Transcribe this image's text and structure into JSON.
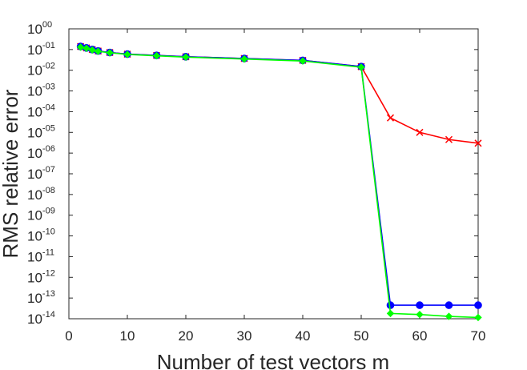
{
  "chart_data": {
    "type": "line",
    "xlabel": "Number of test vectors m",
    "ylabel": "RMS relative error",
    "xlim": [
      0,
      70
    ],
    "ylim_exponent": [
      -14,
      0
    ],
    "yscale": "log",
    "grid": false,
    "xticks": [
      "0",
      "10",
      "20",
      "30",
      "40",
      "50",
      "60",
      "70"
    ],
    "yticks": [
      {
        "base": "10",
        "exp": "00"
      },
      {
        "base": "10",
        "exp": "-01"
      },
      {
        "base": "10",
        "exp": "-02"
      },
      {
        "base": "10",
        "exp": "-03"
      },
      {
        "base": "10",
        "exp": "-04"
      },
      {
        "base": "10",
        "exp": "-05"
      },
      {
        "base": "10",
        "exp": "-06"
      },
      {
        "base": "10",
        "exp": "-07"
      },
      {
        "base": "10",
        "exp": "-08"
      },
      {
        "base": "10",
        "exp": "-09"
      },
      {
        "base": "10",
        "exp": "-10"
      },
      {
        "base": "10",
        "exp": "-11"
      },
      {
        "base": "10",
        "exp": "-12"
      },
      {
        "base": "10",
        "exp": "-13"
      },
      {
        "base": "10",
        "exp": "-14"
      }
    ],
    "series": [
      {
        "color": "#ff0000",
        "marker": "x",
        "x": [
          2,
          3,
          4,
          5,
          7,
          10,
          15,
          20,
          30,
          40,
          50,
          55,
          60,
          65,
          70
        ],
        "y": [
          0.14,
          0.12,
          0.1,
          0.085,
          0.072,
          0.06,
          0.052,
          0.045,
          0.037,
          0.03,
          0.015,
          5e-05,
          1e-05,
          4.5e-06,
          3e-06
        ]
      },
      {
        "color": "#0000ff",
        "marker": "circle",
        "x": [
          2,
          3,
          4,
          5,
          7,
          10,
          15,
          20,
          30,
          40,
          50,
          55,
          60,
          65,
          70
        ],
        "y": [
          0.14,
          0.12,
          0.1,
          0.085,
          0.072,
          0.06,
          0.052,
          0.045,
          0.037,
          0.03,
          0.015,
          4.5e-14,
          4.5e-14,
          4.5e-14,
          4.5e-14
        ]
      },
      {
        "color": "#00ff00",
        "marker": "diamond",
        "x": [
          2,
          3,
          4,
          5,
          7,
          10,
          15,
          20,
          30,
          40,
          50,
          55,
          60,
          65,
          70
        ],
        "y": [
          0.13,
          0.115,
          0.095,
          0.082,
          0.07,
          0.058,
          0.05,
          0.043,
          0.035,
          0.028,
          0.014,
          1.8e-14,
          1.6e-14,
          1.3e-14,
          1.15e-14
        ]
      }
    ]
  }
}
